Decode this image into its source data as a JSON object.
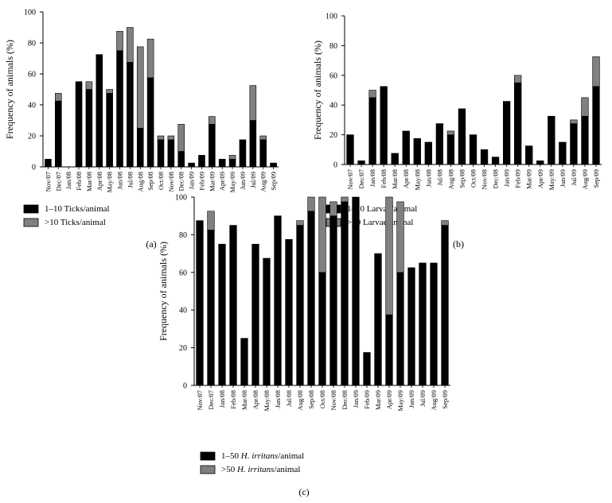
{
  "chart_data": [
    {
      "type": "bar",
      "stacked": true,
      "panel_label": "(a)",
      "ylabel": "Frequency of animals (%)",
      "ylim": [
        0,
        100
      ],
      "yticks": [
        0,
        20,
        40,
        60,
        80,
        100
      ],
      "categories": [
        "Nov/07",
        "Dec/07",
        "Jan/08",
        "Feb/08",
        "Mar/08",
        "Apr/08",
        "May/08",
        "Jun/08",
        "Jul/08",
        "Aug/08",
        "Sep/08",
        "Oct/08",
        "Nov/08",
        "Dec/08",
        "Jan/09",
        "Feb/09",
        "Mar/09",
        "Apr/09",
        "May/09",
        "Jun/09",
        "Jul/09",
        "Aug/09",
        "Sep/09"
      ],
      "series": [
        {
          "name": "1–10 Ticks/animal",
          "color": "#000000",
          "values": [
            5,
            42.5,
            0,
            55,
            50,
            72.5,
            47.5,
            75,
            67.5,
            25,
            57.5,
            17.5,
            17.5,
            10,
            2.5,
            7.5,
            27.5,
            5,
            5,
            17.5,
            30,
            17.5,
            2.5
          ]
        },
        {
          "name": ">10 Ticks/animal",
          "color": "#808080",
          "values": [
            0,
            5,
            0,
            0,
            5,
            0,
            2.5,
            12.5,
            22.5,
            52.5,
            25,
            2.5,
            2.5,
            17.5,
            0,
            0,
            5,
            0,
            2.5,
            0,
            22.5,
            2.5,
            0
          ]
        }
      ],
      "legend": [
        "1–10 Ticks/animal",
        ">10 Ticks/animal"
      ]
    },
    {
      "type": "bar",
      "stacked": true,
      "panel_label": "(b)",
      "ylabel": "Frequency of animals (%)",
      "ylim": [
        0,
        100
      ],
      "yticks": [
        0,
        20,
        40,
        60,
        80,
        100
      ],
      "categories": [
        "Nov/07",
        "Dec/07",
        "Jan/08",
        "Feb/08",
        "Mar/08",
        "Apr/08",
        "May/08",
        "Jun/08",
        "Jul/08",
        "Aug/08",
        "Sep/08",
        "Oct/08",
        "Nov/08",
        "Dec/08",
        "Jan/09",
        "Feb/09",
        "Mar/09",
        "Apr/09",
        "May/09",
        "Jun/09",
        "Jul/09",
        "Aug/09",
        "Sep/09"
      ],
      "series": [
        {
          "name": "1–10 Larvae/animal",
          "color": "#000000",
          "values": [
            20,
            2.5,
            45,
            52.5,
            7.5,
            22.5,
            17.5,
            15,
            27.5,
            20,
            37.5,
            20,
            10,
            5,
            42.5,
            55,
            12.5,
            2.5,
            32.5,
            15,
            27.5,
            32.5,
            52.5
          ]
        },
        {
          "name": ">10 Larvae/animal",
          "color": "#808080",
          "values": [
            0,
            0,
            5,
            0,
            0,
            0,
            0,
            0,
            0,
            2.5,
            0,
            0,
            0,
            0,
            0,
            5,
            0,
            0,
            0,
            0,
            2.5,
            12.5,
            20
          ]
        }
      ],
      "legend": [
        "1–10 Larvae/animal",
        ">10 Larvae/animal"
      ]
    },
    {
      "type": "bar",
      "stacked": true,
      "panel_label": "(c)",
      "ylabel": "Frequency of animals (%)",
      "ylim": [
        0,
        100
      ],
      "yticks": [
        0,
        20,
        40,
        60,
        80,
        100
      ],
      "categories": [
        "Nov/07",
        "Dec/07",
        "Jan/08",
        "Feb/08",
        "Mar/08",
        "Apr/08",
        "May/08",
        "Jun/08",
        "Jul/08",
        "Aug/08",
        "Sep/08",
        "Oct/08",
        "Nov/08",
        "Dec/08",
        "Jan/09",
        "Feb/09",
        "Mar/09",
        "Apr/09",
        "May/09",
        "Jun/09",
        "Jul/09",
        "Aug/09",
        "Sep/09"
      ],
      "series": [
        {
          "name": "1–50 H. irritans/animal",
          "color": "#000000",
          "values": [
            87.5,
            82.5,
            75,
            85,
            25,
            75,
            67.5,
            90,
            77.5,
            85,
            92.5,
            60,
            90,
            97.5,
            100,
            17.5,
            70,
            37.5,
            60,
            62.5,
            65,
            65,
            85
          ]
        },
        {
          "name": ">50 H. irritans/animal",
          "color": "#808080",
          "values": [
            0,
            10,
            0,
            0,
            0,
            0,
            0,
            0,
            0,
            2.5,
            7.5,
            40,
            7.5,
            2.5,
            0,
            0,
            0,
            62.5,
            37.5,
            0,
            0,
            0,
            2.5
          ]
        }
      ],
      "legend": [
        {
          "prefix": "1–50 ",
          "italic": "H. irritans",
          "suffix": "/animal"
        },
        {
          "prefix": ">50 ",
          "italic": "H. irritans",
          "suffix": "/animal"
        }
      ]
    }
  ]
}
